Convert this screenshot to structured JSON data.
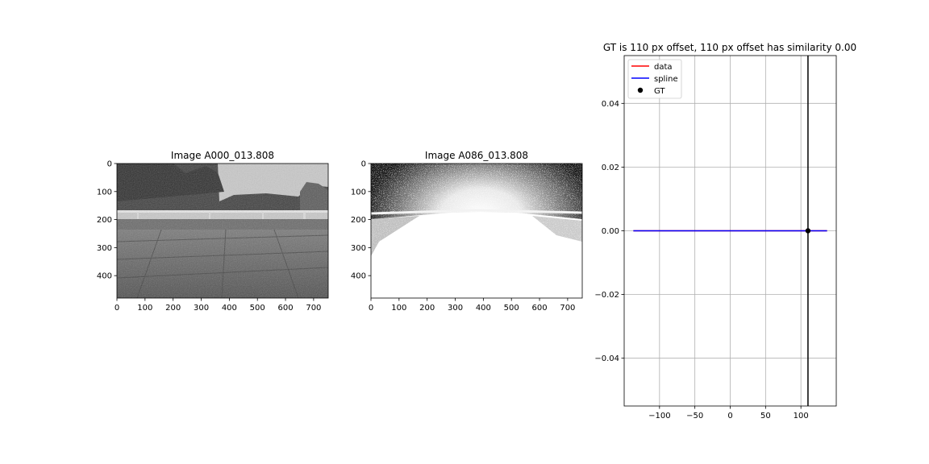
{
  "chart_data": [
    {
      "type": "image",
      "title": "Image A000_013.808",
      "xlim": [
        0,
        752
      ],
      "ylim": [
        480,
        0
      ],
      "xticks": [
        0,
        100,
        200,
        300,
        400,
        500,
        600,
        700
      ],
      "yticks": [
        0,
        100,
        200,
        300,
        400
      ],
      "xtick_labels": [
        "0",
        "100",
        "200",
        "300",
        "400",
        "500",
        "600",
        "700"
      ],
      "ytick_labels": [
        "0",
        "100",
        "200",
        "300",
        "400"
      ],
      "content": "grayscale photo of a paved yard with fence and trees"
    },
    {
      "type": "image",
      "title": "Image A086_013.808",
      "xlim": [
        0,
        752
      ],
      "ylim": [
        480,
        0
      ],
      "xticks": [
        0,
        100,
        200,
        300,
        400,
        500,
        600,
        700
      ],
      "yticks": [
        0,
        100,
        200,
        300,
        400
      ],
      "xtick_labels": [
        "0",
        "100",
        "200",
        "300",
        "400",
        "500",
        "600",
        "700"
      ],
      "ytick_labels": [
        "0",
        "100",
        "200",
        "300",
        "400"
      ],
      "content": "overexposed grayscale photo of the same scene"
    },
    {
      "type": "line",
      "title": "GT is 110 px offset, 110 px offset has similarity 0.00",
      "xlim": [
        -150,
        150
      ],
      "ylim": [
        -0.055,
        0.055
      ],
      "xticks": [
        -100,
        -50,
        0,
        50,
        100
      ],
      "yticks": [
        -0.04,
        -0.02,
        0.0,
        0.02,
        0.04
      ],
      "xtick_labels": [
        "−100",
        "−50",
        "0",
        "50",
        "100"
      ],
      "ytick_labels": [
        "−0.04",
        "−0.02",
        "0.00",
        "0.02",
        "0.04"
      ],
      "grid": true,
      "legend_position": "upper-left",
      "series": [
        {
          "name": "data",
          "color": "#ff0000",
          "x": [
            -137,
            137
          ],
          "y": [
            0,
            0
          ]
        },
        {
          "name": "spline",
          "color": "#0000ff",
          "x": [
            -137,
            137
          ],
          "y": [
            0,
            0
          ]
        }
      ],
      "gt_point": {
        "name": "GT",
        "x": 110,
        "y": 0,
        "color": "#000000"
      },
      "vline_x": 110
    }
  ]
}
